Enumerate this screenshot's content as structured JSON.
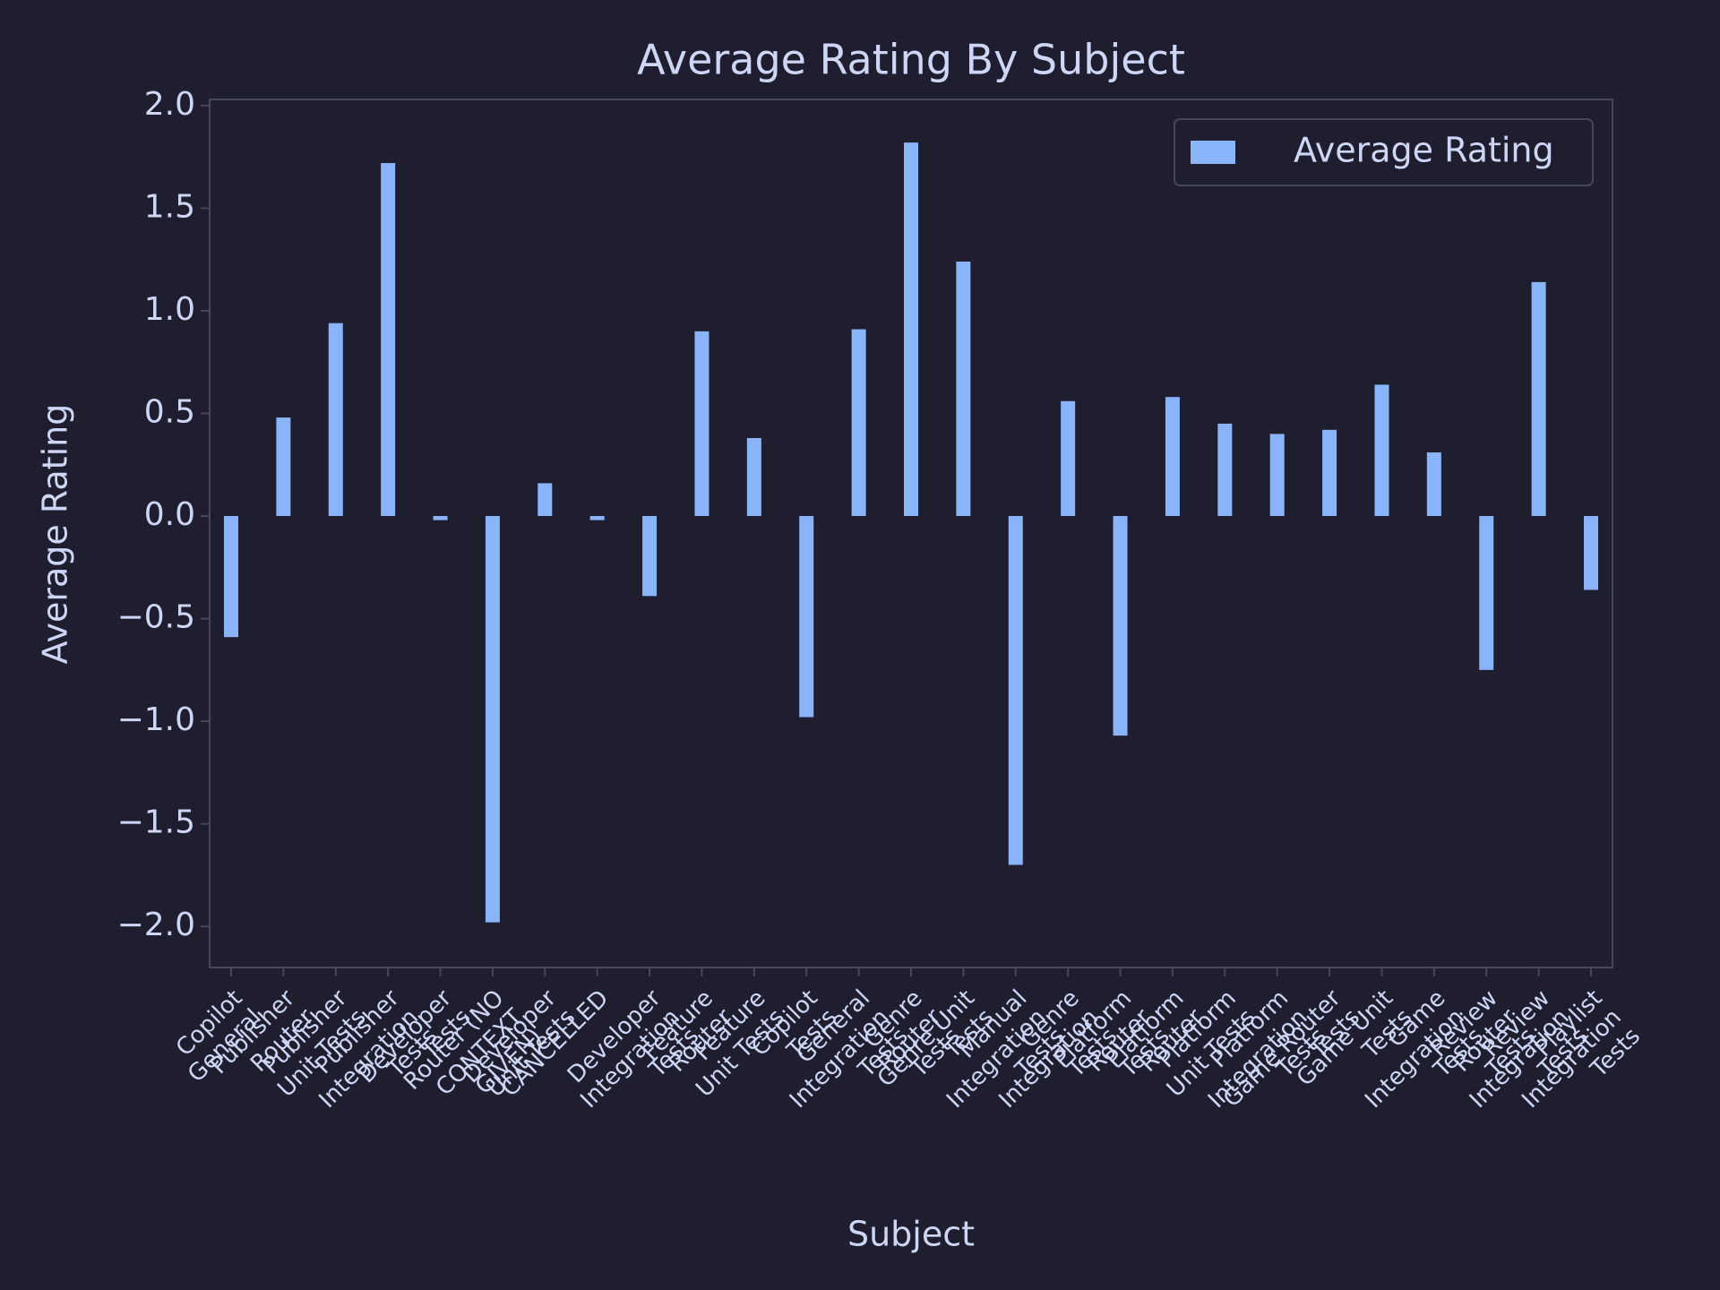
{
  "chart_data": {
    "type": "bar",
    "title": "Average Rating By Subject",
    "x_label": "Subject",
    "y_label": "Average Rating",
    "categories": [
      "Copilot General",
      "Publisher Router",
      "Publisher Unit Tests",
      "Publisher Integration Tests",
      "Developer Tests",
      "Router (NO CONTEXT GIVEN)",
      "Developer Unit Tests",
      "CANCELLED",
      "Developer Integration Tests",
      "Feature Router",
      "Feature Unit Tests",
      "Copilot Tests",
      "General Integration Tests",
      "Genre Router Tests",
      "Genre Unit Tests",
      "Manual Integration Tests",
      "Genre Integration Tests",
      "Platform Router Tests",
      "Platform Router",
      "Platform Unit Tests",
      "Platform Integration Tests",
      "Game Router Tests",
      "Game Unit Tests",
      "Game Integration Tests",
      "Review Router Tests",
      "Review Integration Tests",
      "Playlist Integration Tests"
    ],
    "series": [
      {
        "name": "Average Rating",
        "color": "#89b4fa",
        "values": [
          -0.59,
          0.48,
          0.94,
          1.72,
          -0.02,
          -1.98,
          0.16,
          -0.02,
          -0.39,
          0.9,
          0.38,
          -0.98,
          0.91,
          1.82,
          1.24,
          -1.7,
          0.56,
          -1.07,
          0.58,
          0.45,
          0.4,
          0.42,
          0.64,
          0.31,
          -0.75,
          1.14,
          -0.36
        ]
      }
    ],
    "ylim": [
      -2.2,
      2.03
    ],
    "yticks": [
      {
        "value": -2,
        "label": "−2.0"
      },
      {
        "value": -1.5,
        "label": "−1.5"
      },
      {
        "value": -1,
        "label": "−1.0"
      },
      {
        "value": -0.5,
        "label": "−0.5"
      },
      {
        "value": 0,
        "label": "0.0"
      },
      {
        "value": 0.5,
        "label": "0.5"
      },
      {
        "value": 1,
        "label": "1.0"
      },
      {
        "value": 1.5,
        "label": "1.5"
      },
      {
        "value": 2,
        "label": "2.0"
      }
    ],
    "legend": "upper right",
    "grid": false
  }
}
